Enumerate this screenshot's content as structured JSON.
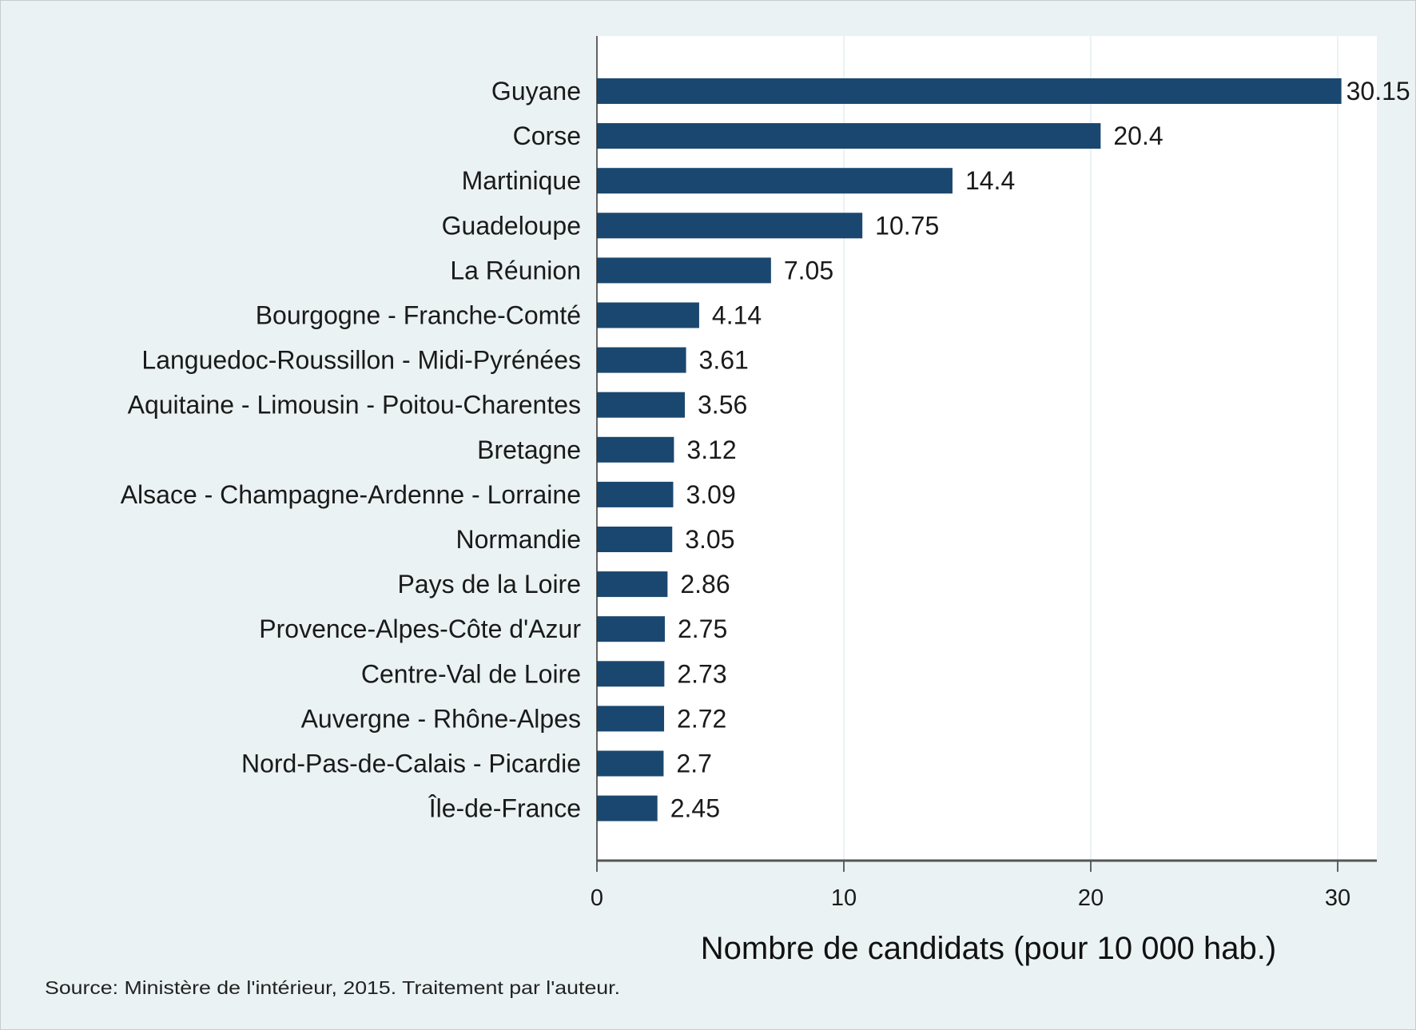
{
  "chart_data": {
    "type": "bar",
    "orientation": "horizontal",
    "categories": [
      "Guyane",
      "Corse",
      "Martinique",
      "Guadeloupe",
      "La Réunion",
      "Bourgogne - Franche-Comté",
      "Languedoc-Roussillon - Midi-Pyrénées",
      "Aquitaine - Limousin - Poitou-Charentes",
      "Bretagne",
      "Alsace - Champagne-Ardenne - Lorraine",
      "Normandie",
      "Pays de la Loire",
      "Provence-Alpes-Côte d'Azur",
      "Centre-Val de Loire",
      "Auvergne - Rhône-Alpes",
      "Nord-Pas-de-Calais - Picardie",
      "Île-de-France"
    ],
    "values": [
      30.15,
      20.4,
      14.4,
      10.75,
      7.05,
      4.14,
      3.61,
      3.56,
      3.12,
      3.09,
      3.05,
      2.86,
      2.75,
      2.73,
      2.72,
      2.7,
      2.45
    ],
    "value_labels": [
      "30.15",
      "20.4",
      "14.4",
      "10.75",
      "7.05",
      "4.14",
      "3.61",
      "3.56",
      "3.12",
      "3.09",
      "3.05",
      "2.86",
      "2.75",
      "2.73",
      "2.72",
      "2.7",
      "2.45"
    ],
    "xlabel": "Nombre de candidats (pour 10 000 hab.)",
    "ylabel": "",
    "xlim": [
      0,
      31.6
    ],
    "xticks": [
      "0",
      "10",
      "20",
      "30"
    ],
    "grid": true,
    "note": "Source: Ministère de l'intérieur, 2015. Traitement par l'auteur.",
    "colors": {
      "bar": "#1a476f",
      "background": "#eaf2f3",
      "plot": "#ffffff",
      "grid": "#eaf2f3"
    }
  }
}
